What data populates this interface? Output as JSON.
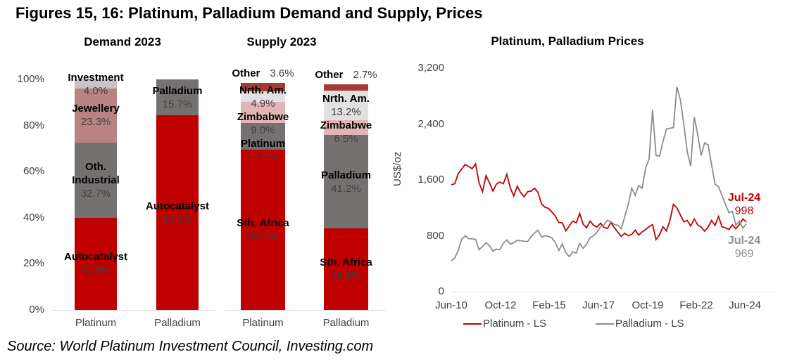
{
  "title": "Figures 15, 16: Platinum, Palladium Demand and Supply, Prices",
  "source": "Source: World Platinum Investment Council, Investing.com",
  "colors": {
    "red": "#C00000",
    "gray": "#767171",
    "axis_text": "#404040",
    "axis_line": "#D9D9D9"
  },
  "chart_data": [
    {
      "type": "bar",
      "id": "demand",
      "title": "Demand 2023",
      "stacked": true,
      "unit": "%",
      "y_ticks": [
        "0%",
        "20%",
        "40%",
        "60%",
        "80%",
        "100%"
      ],
      "categories": [
        "Platinum",
        "Palladium"
      ],
      "bars": [
        {
          "category": "Platinum",
          "segments": [
            {
              "label": "Autocatalyst",
              "value": 40.0,
              "color": "#C00000"
            },
            {
              "label": "Oth.\nIndustrial",
              "value": 32.7,
              "color": "#767171"
            },
            {
              "label": "Jewellery",
              "value": 23.3,
              "color": "#B98383"
            },
            {
              "label": "Investment",
              "value": 4.0,
              "color": "#C6C4C4"
            }
          ]
        },
        {
          "category": "Palladium",
          "segments": [
            {
              "label": "Autocatalyst",
              "value": 84.3,
              "color": "#C00000"
            },
            {
              "label": "Palladium",
              "value": 15.7,
              "color": "#767171"
            }
          ]
        }
      ]
    },
    {
      "type": "bar",
      "id": "supply",
      "title": "Supply 2023",
      "stacked": true,
      "unit": "%",
      "categories": [
        "Platinum",
        "Palladium"
      ],
      "bars": [
        {
          "category": "Platinum",
          "segments": [
            {
              "label": "Sth. Africa",
              "value": 70.5,
              "color": "#C00000"
            },
            {
              "label": "Platinum",
              "value": 12.0,
              "color": "#767171"
            },
            {
              "label": "Zimbabwe",
              "value": 9.0,
              "color": "#E2B6B5"
            },
            {
              "label": "Nrth. Am.",
              "value": 4.9,
              "color": "#E2E0E0"
            },
            {
              "label": "Other",
              "value": 3.6,
              "color": "#A43B36",
              "outside": true
            }
          ]
        },
        {
          "category": "Palladium",
          "segments": [
            {
              "label": "Sth. Africa",
              "value": 35.8,
              "color": "#C00000"
            },
            {
              "label": "Palladium",
              "value": 41.2,
              "color": "#767171"
            },
            {
              "label": "Zimbabwe",
              "value": 6.5,
              "color": "#E2B6B5"
            },
            {
              "label": "Nrth. Am.",
              "value": 13.2,
              "color": "#E2E0E0"
            },
            {
              "label": "Other",
              "value": 2.7,
              "color": "#A43B36",
              "outside": true
            }
          ]
        }
      ]
    },
    {
      "type": "line",
      "id": "prices",
      "title": "Platinum, Palladium Prices",
      "ylabel": "US$/oz",
      "ylim": [
        0,
        3200
      ],
      "y_tick_values": [
        0,
        800,
        1600,
        2400,
        3200
      ],
      "y_tick_labels": [
        "0",
        "800",
        "1,600",
        "2,400",
        "3,200"
      ],
      "x_ticks": [
        "Jun-10",
        "Oct-12",
        "Feb-15",
        "Jun-17",
        "Oct-19",
        "Feb-22",
        "Jun-24"
      ],
      "x_range": [
        "Jun-10",
        "Jul-24"
      ],
      "grid": false,
      "legend_position": "bottom",
      "legend": [
        {
          "name": "Platinum - LS",
          "color": "#C00000"
        },
        {
          "name": "Palladium - LS",
          "color": "#8C8C8C"
        }
      ],
      "annotations": [
        {
          "series": "Platinum",
          "lines": [
            "Jul-24",
            "998"
          ],
          "color": "#C00000"
        },
        {
          "series": "Palladium",
          "lines": [
            "Jul-24",
            "969"
          ],
          "color": "#8F8F8F"
        }
      ],
      "series": [
        {
          "name": "Platinum - LS",
          "color": "#C00000",
          "values": [
            1530,
            1545,
            1690,
            1755,
            1820,
            1790,
            1760,
            1830,
            1560,
            1430,
            1660,
            1560,
            1440,
            1540,
            1570,
            1545,
            1680,
            1485,
            1370,
            1510,
            1415,
            1360,
            1430,
            1440,
            1480,
            1420,
            1255,
            1210,
            1190,
            1140,
            1080,
            990,
            985,
            870,
            940,
            1010,
            985,
            1120,
            965,
            915,
            1010,
            950,
            925,
            980,
            920,
            905,
            990,
            915,
            850,
            790,
            835,
            800,
            820,
            880,
            810,
            855,
            890,
            930,
            960,
            745,
            815,
            930,
            870,
            1020,
            1250,
            1200,
            1100,
            1000,
            1020,
            940,
            1040,
            955,
            925,
            865,
            925,
            1020,
            950,
            1075,
            930,
            915,
            890,
            955,
            900,
            960,
            1040,
            998
          ]
        },
        {
          "name": "Palladium - LS",
          "color": "#8C8C8C",
          "values": [
            440,
            480,
            590,
            750,
            800,
            760,
            755,
            750,
            600,
            645,
            700,
            660,
            580,
            610,
            600,
            690,
            740,
            680,
            700,
            735,
            730,
            720,
            715,
            790,
            840,
            880,
            780,
            800,
            790,
            770,
            700,
            590,
            680,
            560,
            500,
            570,
            550,
            690,
            620,
            680,
            775,
            800,
            850,
            930,
            955,
            1020,
            1000,
            960,
            950,
            900,
            1080,
            1250,
            1480,
            1380,
            1520,
            1480,
            1770,
            1900,
            2600,
            1950,
            1940,
            2150,
            2330,
            2340,
            2350,
            2930,
            2750,
            2400,
            2000,
            1800,
            2500,
            2250,
            1950,
            2130,
            2100,
            1820,
            1540,
            1500,
            1380,
            1250,
            1130,
            1150,
            950,
            1010,
            910,
            969
          ]
        }
      ]
    }
  ]
}
